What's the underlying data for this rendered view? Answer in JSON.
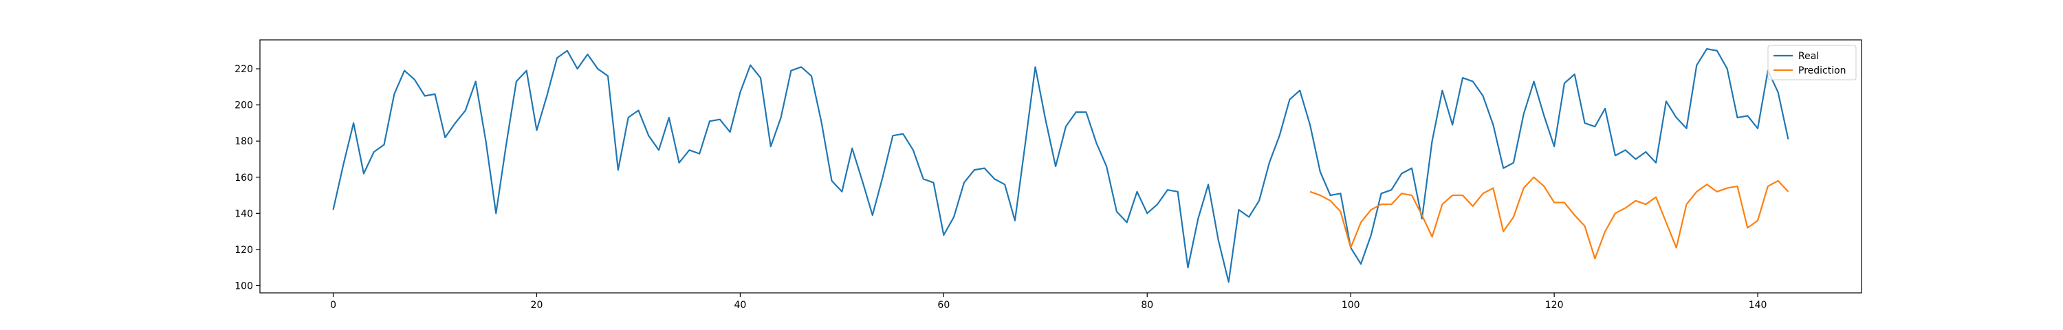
{
  "chart_data": {
    "type": "line",
    "title": "",
    "xlabel": "",
    "ylabel": "",
    "xlim": [
      -7.2,
      150.2
    ],
    "ylim": [
      96,
      236
    ],
    "xticks": [
      0,
      20,
      40,
      60,
      80,
      100,
      120,
      140
    ],
    "yticks": [
      100,
      120,
      140,
      160,
      180,
      200,
      220
    ],
    "grid": false,
    "legend_position": "upper right",
    "series": [
      {
        "name": "Real",
        "color": "#1f77b4",
        "x_start": 0,
        "values": [
          142,
          167,
          190,
          162,
          174,
          178,
          206,
          219,
          214,
          205,
          206,
          182,
          190,
          197,
          213,
          180,
          140,
          178,
          213,
          219,
          186,
          205,
          226,
          230,
          220,
          228,
          220,
          216,
          164,
          193,
          197,
          183,
          175,
          193,
          168,
          175,
          173,
          191,
          192,
          185,
          207,
          222,
          215,
          177,
          193,
          219,
          221,
          216,
          190,
          158,
          152,
          176,
          158,
          139,
          160,
          183,
          184,
          175,
          159,
          157,
          128,
          138,
          157,
          164,
          165,
          159,
          156,
          136,
          178,
          221,
          192,
          166,
          188,
          196,
          196,
          179,
          166,
          141,
          135,
          152,
          140,
          145,
          153,
          152,
          110,
          137,
          156,
          125,
          102,
          142,
          138,
          147,
          168,
          183,
          203,
          208,
          189,
          163,
          150,
          151,
          121,
          112,
          128,
          151,
          153,
          162,
          165,
          137,
          180,
          208,
          189,
          215,
          213,
          205,
          189,
          165,
          168,
          195,
          213,
          194,
          177,
          212,
          217,
          190,
          188,
          198,
          172,
          175,
          170,
          174,
          168,
          202,
          193,
          187,
          222,
          231,
          230,
          220,
          193,
          194,
          187,
          219,
          207,
          181
        ]
      },
      {
        "name": "Prediction",
        "color": "#ff7f0e",
        "x_start": 96,
        "values": [
          152,
          150,
          147,
          141,
          121,
          135,
          142,
          145,
          145,
          151,
          150,
          139,
          127,
          145,
          150,
          150,
          144,
          151,
          154,
          130,
          138,
          154,
          160,
          155,
          146,
          146,
          139,
          133,
          115,
          130,
          140,
          143,
          147,
          145,
          149,
          135,
          121,
          145,
          152,
          156,
          152,
          154,
          155,
          132,
          136,
          155,
          158,
          152
        ]
      }
    ]
  }
}
